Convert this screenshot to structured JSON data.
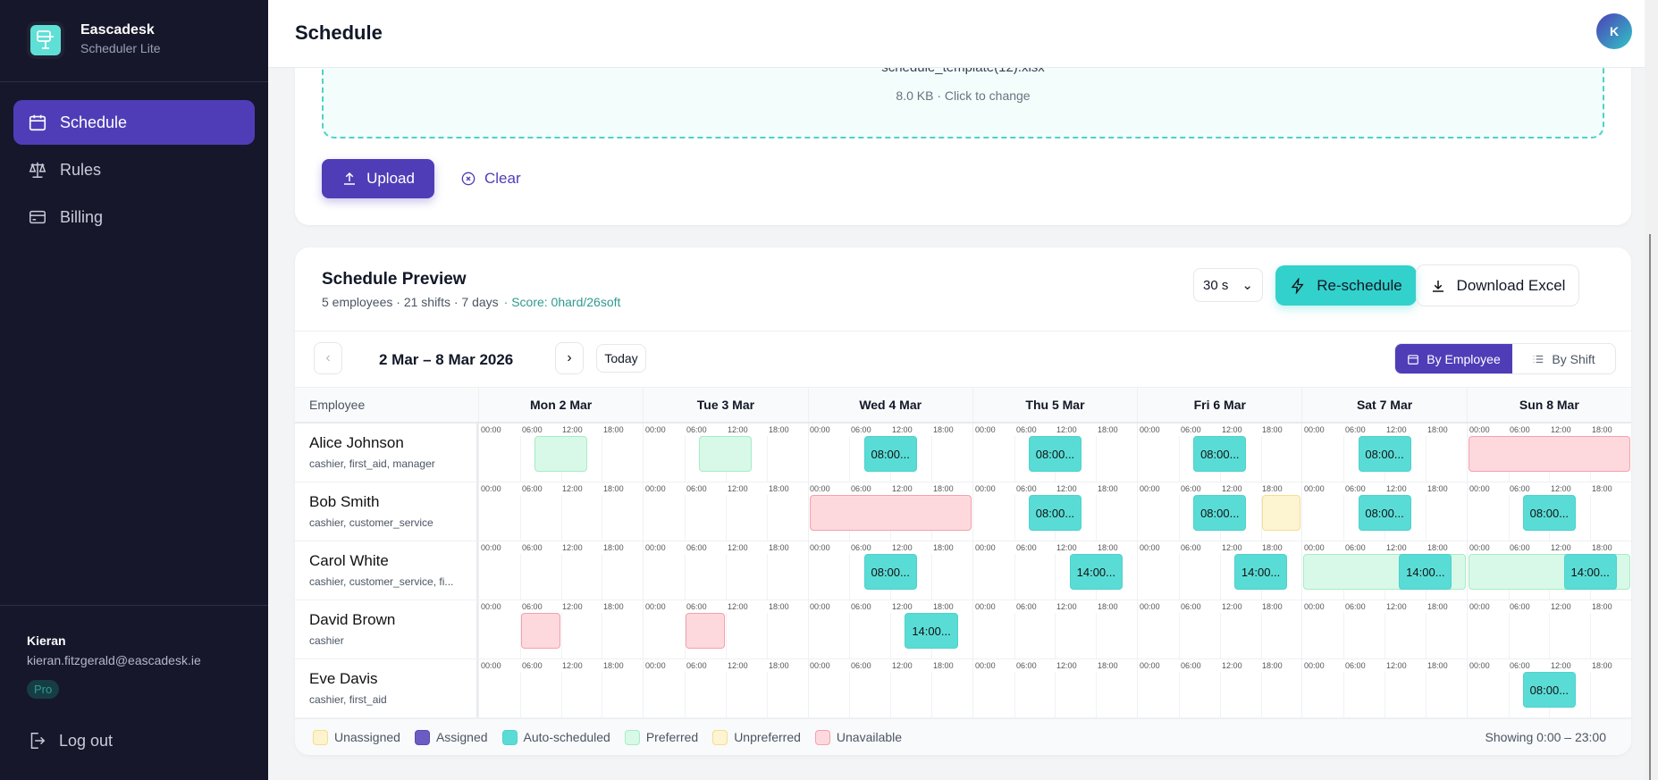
{
  "app": {
    "name": "Eascadesk",
    "subtitle": "Scheduler Lite"
  },
  "sidebar": {
    "items": [
      {
        "label": "Schedule",
        "icon": "calendar-icon",
        "active": true
      },
      {
        "label": "Rules",
        "icon": "scale-icon"
      },
      {
        "label": "Billing",
        "icon": "credit-card-icon"
      }
    ]
  },
  "user": {
    "name": "Kieran",
    "email": "kieran.fitzgerald@eascadesk.ie",
    "plan": "Pro",
    "logout_label": "Log out",
    "avatar_initial": "K"
  },
  "header": {
    "title": "Schedule"
  },
  "upload": {
    "filename": "schedule_template(12).xlsx",
    "meta": "8.0 KB · Click to change",
    "upload_label": "Upload",
    "clear_label": "Clear"
  },
  "preview": {
    "title": "Schedule Preview",
    "summary": "5 employees · 21 shifts · 7 days",
    "score": "· Score: 0hard/26soft",
    "time_limit": "30 s",
    "reschedule_label": "Re-schedule",
    "download_label": "Download Excel",
    "range": "2 Mar – 8 Mar 2026",
    "today_label": "Today",
    "view_by_employee": "By Employee",
    "view_by_shift": "By Shift",
    "employee_header": "Employee",
    "showing": "Showing 0:00 – 23:00"
  },
  "days": [
    "Mon 2 Mar",
    "Tue 3 Mar",
    "Wed 4 Mar",
    "Thu 5 Mar",
    "Fri 6 Mar",
    "Sat 7 Mar",
    "Sun 8 Mar"
  ],
  "ticks": [
    "00:00",
    "06:00",
    "12:00",
    "18:00"
  ],
  "colors": {
    "accent": "#4f3db8",
    "teal": "#33d1cb",
    "sidebar": "#16172b"
  },
  "legend": [
    {
      "label": "Unassigned",
      "type": "unassigned"
    },
    {
      "label": "Assigned",
      "type": "assigned"
    },
    {
      "label": "Auto-scheduled",
      "type": "auto"
    },
    {
      "label": "Preferred",
      "type": "preferred"
    },
    {
      "label": "Unpreferred",
      "type": "unpreferred"
    },
    {
      "label": "Unavailable",
      "type": "unavailable"
    }
  ],
  "block_styles": {
    "unassigned": {
      "bg": "#fdf3cf",
      "border": "#f6dc8c"
    },
    "assigned": {
      "bg": "#6b5cc4",
      "border": "#5a4bb5"
    },
    "auto": {
      "bg": "#5adcd6",
      "border": "#4fd1cb"
    },
    "preferred": {
      "bg": "#d8f9e8",
      "border": "#a6ecc6"
    },
    "unpreferred": {
      "bg": "#fdf4d2",
      "border": "#f6dd8f"
    },
    "unavailable": {
      "bg": "#fdd9de",
      "border": "#f4a1ac"
    }
  },
  "employees": [
    {
      "name": "Alice Johnson",
      "skills": "cashier, first_aid, manager",
      "blocks": [
        {
          "day": 0,
          "start": 8,
          "end": 16,
          "type": "preferred"
        },
        {
          "day": 1,
          "start": 8,
          "end": 16,
          "type": "preferred"
        },
        {
          "day": 2,
          "start": 8,
          "end": 16,
          "type": "auto",
          "label": "08:00..."
        },
        {
          "day": 3,
          "start": 8,
          "end": 16,
          "type": "auto",
          "label": "08:00..."
        },
        {
          "day": 4,
          "start": 8,
          "end": 16,
          "type": "auto",
          "label": "08:00..."
        },
        {
          "day": 5,
          "start": 8,
          "end": 16,
          "type": "auto",
          "label": "08:00..."
        },
        {
          "day": 6,
          "start": 0,
          "end": 24,
          "type": "unavailable"
        }
      ]
    },
    {
      "name": "Bob Smith",
      "skills": "cashier, customer_service",
      "blocks": [
        {
          "day": 2,
          "start": 0,
          "end": 24,
          "type": "unavailable"
        },
        {
          "day": 3,
          "start": 8,
          "end": 16,
          "type": "auto",
          "label": "08:00..."
        },
        {
          "day": 4,
          "start": 8,
          "end": 16,
          "type": "auto",
          "label": "08:00..."
        },
        {
          "day": 4,
          "start": 18,
          "end": 24,
          "type": "unpreferred"
        },
        {
          "day": 5,
          "start": 8,
          "end": 16,
          "type": "auto",
          "label": "08:00..."
        },
        {
          "day": 6,
          "start": 8,
          "end": 16,
          "type": "auto",
          "label": "08:00..."
        }
      ]
    },
    {
      "name": "Carol White",
      "skills": "cashier, customer_service, fi...",
      "blocks": [
        {
          "day": 2,
          "start": 8,
          "end": 16,
          "type": "auto",
          "label": "08:00..."
        },
        {
          "day": 3,
          "start": 14,
          "end": 22,
          "type": "auto",
          "label": "14:00..."
        },
        {
          "day": 4,
          "start": 14,
          "end": 22,
          "type": "auto",
          "label": "14:00..."
        },
        {
          "day": 5,
          "start": 0,
          "end": 24,
          "type": "preferred"
        },
        {
          "day": 5,
          "start": 14,
          "end": 22,
          "type": "auto",
          "label": "14:00..."
        },
        {
          "day": 6,
          "start": 0,
          "end": 24,
          "type": "preferred"
        },
        {
          "day": 6,
          "start": 14,
          "end": 22,
          "type": "auto",
          "label": "14:00..."
        }
      ]
    },
    {
      "name": "David Brown",
      "skills": "cashier",
      "blocks": [
        {
          "day": 0,
          "start": 6,
          "end": 12,
          "type": "unavailable"
        },
        {
          "day": 1,
          "start": 6,
          "end": 12,
          "type": "unavailable"
        },
        {
          "day": 2,
          "start": 14,
          "end": 22,
          "type": "auto",
          "label": "14:00..."
        }
      ]
    },
    {
      "name": "Eve Davis",
      "skills": "cashier, first_aid",
      "blocks": [
        {
          "day": 6,
          "start": 8,
          "end": 16,
          "type": "auto",
          "label": "08:00..."
        }
      ]
    }
  ]
}
